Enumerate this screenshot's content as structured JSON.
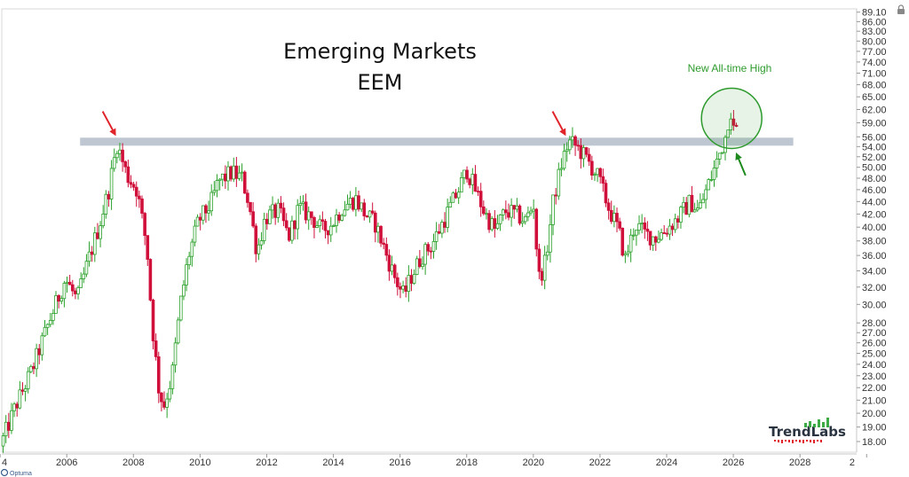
{
  "chart_data": {
    "type": "candlestick",
    "title": "Emerging Markets",
    "subtitle": "EEM",
    "y_scale": "log",
    "ylim": [
      17.3,
      90.2
    ],
    "xlim": [
      2004.05,
      2029.7
    ],
    "yticks": [
      "18.00",
      "19.00",
      "20.00",
      "21.00",
      "22.00",
      "23.00",
      "24.00",
      "25.00",
      "26.00",
      "27.00",
      "28.00",
      "30.00",
      "32.00",
      "34.00",
      "36.00",
      "38.00",
      "40.00",
      "42.00",
      "44.00",
      "46.00",
      "48.00",
      "50.00",
      "52.00",
      "54.00",
      "56.00",
      "59.00",
      "62.00",
      "65.00",
      "68.00",
      "71.00",
      "74.00",
      "77.00",
      "80.00",
      "83.00",
      "86.00",
      "89.10"
    ],
    "xticks": [
      "4",
      "2006",
      "2008",
      "2010",
      "2012",
      "2014",
      "2016",
      "2018",
      "2020",
      "2022",
      "2024",
      "2026",
      "2028",
      "2"
    ],
    "resistance_level": 55,
    "resistance_x_range": [
      2006.4,
      2027.8
    ],
    "up_color": "#2aa12a",
    "down_color": "#d0103a",
    "grid": false,
    "legend": "none",
    "price_path": [
      [
        2004.05,
        17.7
      ],
      [
        2004.5,
        20.5
      ],
      [
        2005.0,
        23.5
      ],
      [
        2005.5,
        28.0
      ],
      [
        2006.0,
        33.0
      ],
      [
        2006.35,
        30.5
      ],
      [
        2006.7,
        35.5
      ],
      [
        2007.0,
        40.0
      ],
      [
        2007.3,
        46.0
      ],
      [
        2007.55,
        54.5
      ],
      [
        2007.85,
        48.5
      ],
      [
        2008.15,
        46.0
      ],
      [
        2008.45,
        37.0
      ],
      [
        2008.6,
        28.0
      ],
      [
        2008.8,
        22.0
      ],
      [
        2008.95,
        20.5
      ],
      [
        2009.2,
        23.0
      ],
      [
        2009.45,
        30.0
      ],
      [
        2009.7,
        36.0
      ],
      [
        2010.0,
        41.0
      ],
      [
        2010.35,
        43.5
      ],
      [
        2010.6,
        47.5
      ],
      [
        2011.0,
        49.0
      ],
      [
        2011.3,
        48.0
      ],
      [
        2011.5,
        44.0
      ],
      [
        2011.75,
        36.5
      ],
      [
        2012.0,
        41.5
      ],
      [
        2012.4,
        42.5
      ],
      [
        2012.7,
        38.5
      ],
      [
        2013.0,
        43.0
      ],
      [
        2013.4,
        41.5
      ],
      [
        2013.7,
        39.5
      ],
      [
        2014.0,
        40.5
      ],
      [
        2014.3,
        43.0
      ],
      [
        2014.7,
        44.5
      ],
      [
        2015.0,
        42.0
      ],
      [
        2015.3,
        40.5
      ],
      [
        2015.6,
        36.5
      ],
      [
        2015.9,
        33.0
      ],
      [
        2016.15,
        31.0
      ],
      [
        2016.4,
        33.5
      ],
      [
        2016.7,
        36.0
      ],
      [
        2017.0,
        37.5
      ],
      [
        2017.4,
        41.5
      ],
      [
        2017.8,
        46.0
      ],
      [
        2018.05,
        49.5
      ],
      [
        2018.3,
        46.0
      ],
      [
        2018.6,
        42.0
      ],
      [
        2018.9,
        39.5
      ],
      [
        2019.2,
        42.5
      ],
      [
        2019.5,
        42.0
      ],
      [
        2019.8,
        41.0
      ],
      [
        2020.05,
        43.5
      ],
      [
        2020.2,
        33.0
      ],
      [
        2020.4,
        35.0
      ],
      [
        2020.65,
        44.5
      ],
      [
        2020.9,
        51.0
      ],
      [
        2021.1,
        55.0
      ],
      [
        2021.35,
        54.0
      ],
      [
        2021.7,
        51.0
      ],
      [
        2022.0,
        48.0
      ],
      [
        2022.3,
        43.0
      ],
      [
        2022.6,
        39.5
      ],
      [
        2022.8,
        35.5
      ],
      [
        2023.1,
        40.5
      ],
      [
        2023.4,
        39.0
      ],
      [
        2023.7,
        38.5
      ],
      [
        2024.0,
        39.5
      ],
      [
        2024.4,
        41.5
      ],
      [
        2024.75,
        44.0
      ],
      [
        2025.0,
        42.5
      ],
      [
        2025.3,
        47.0
      ],
      [
        2025.55,
        51.0
      ],
      [
        2025.8,
        56.0
      ],
      [
        2025.95,
        62.5
      ],
      [
        2026.05,
        57.5
      ]
    ],
    "annotations": {
      "label": "New All-time High",
      "circle_center": [
        2025.95,
        60.0
      ],
      "arrow_targets": [
        [
          2007.45,
          56.5
        ],
        [
          2020.95,
          56.5
        ]
      ],
      "green_arrow_target": [
        2026.1,
        52.5
      ]
    }
  },
  "logo": {
    "text": "TrendLabs"
  },
  "footer": {
    "brand": "Optuma"
  }
}
